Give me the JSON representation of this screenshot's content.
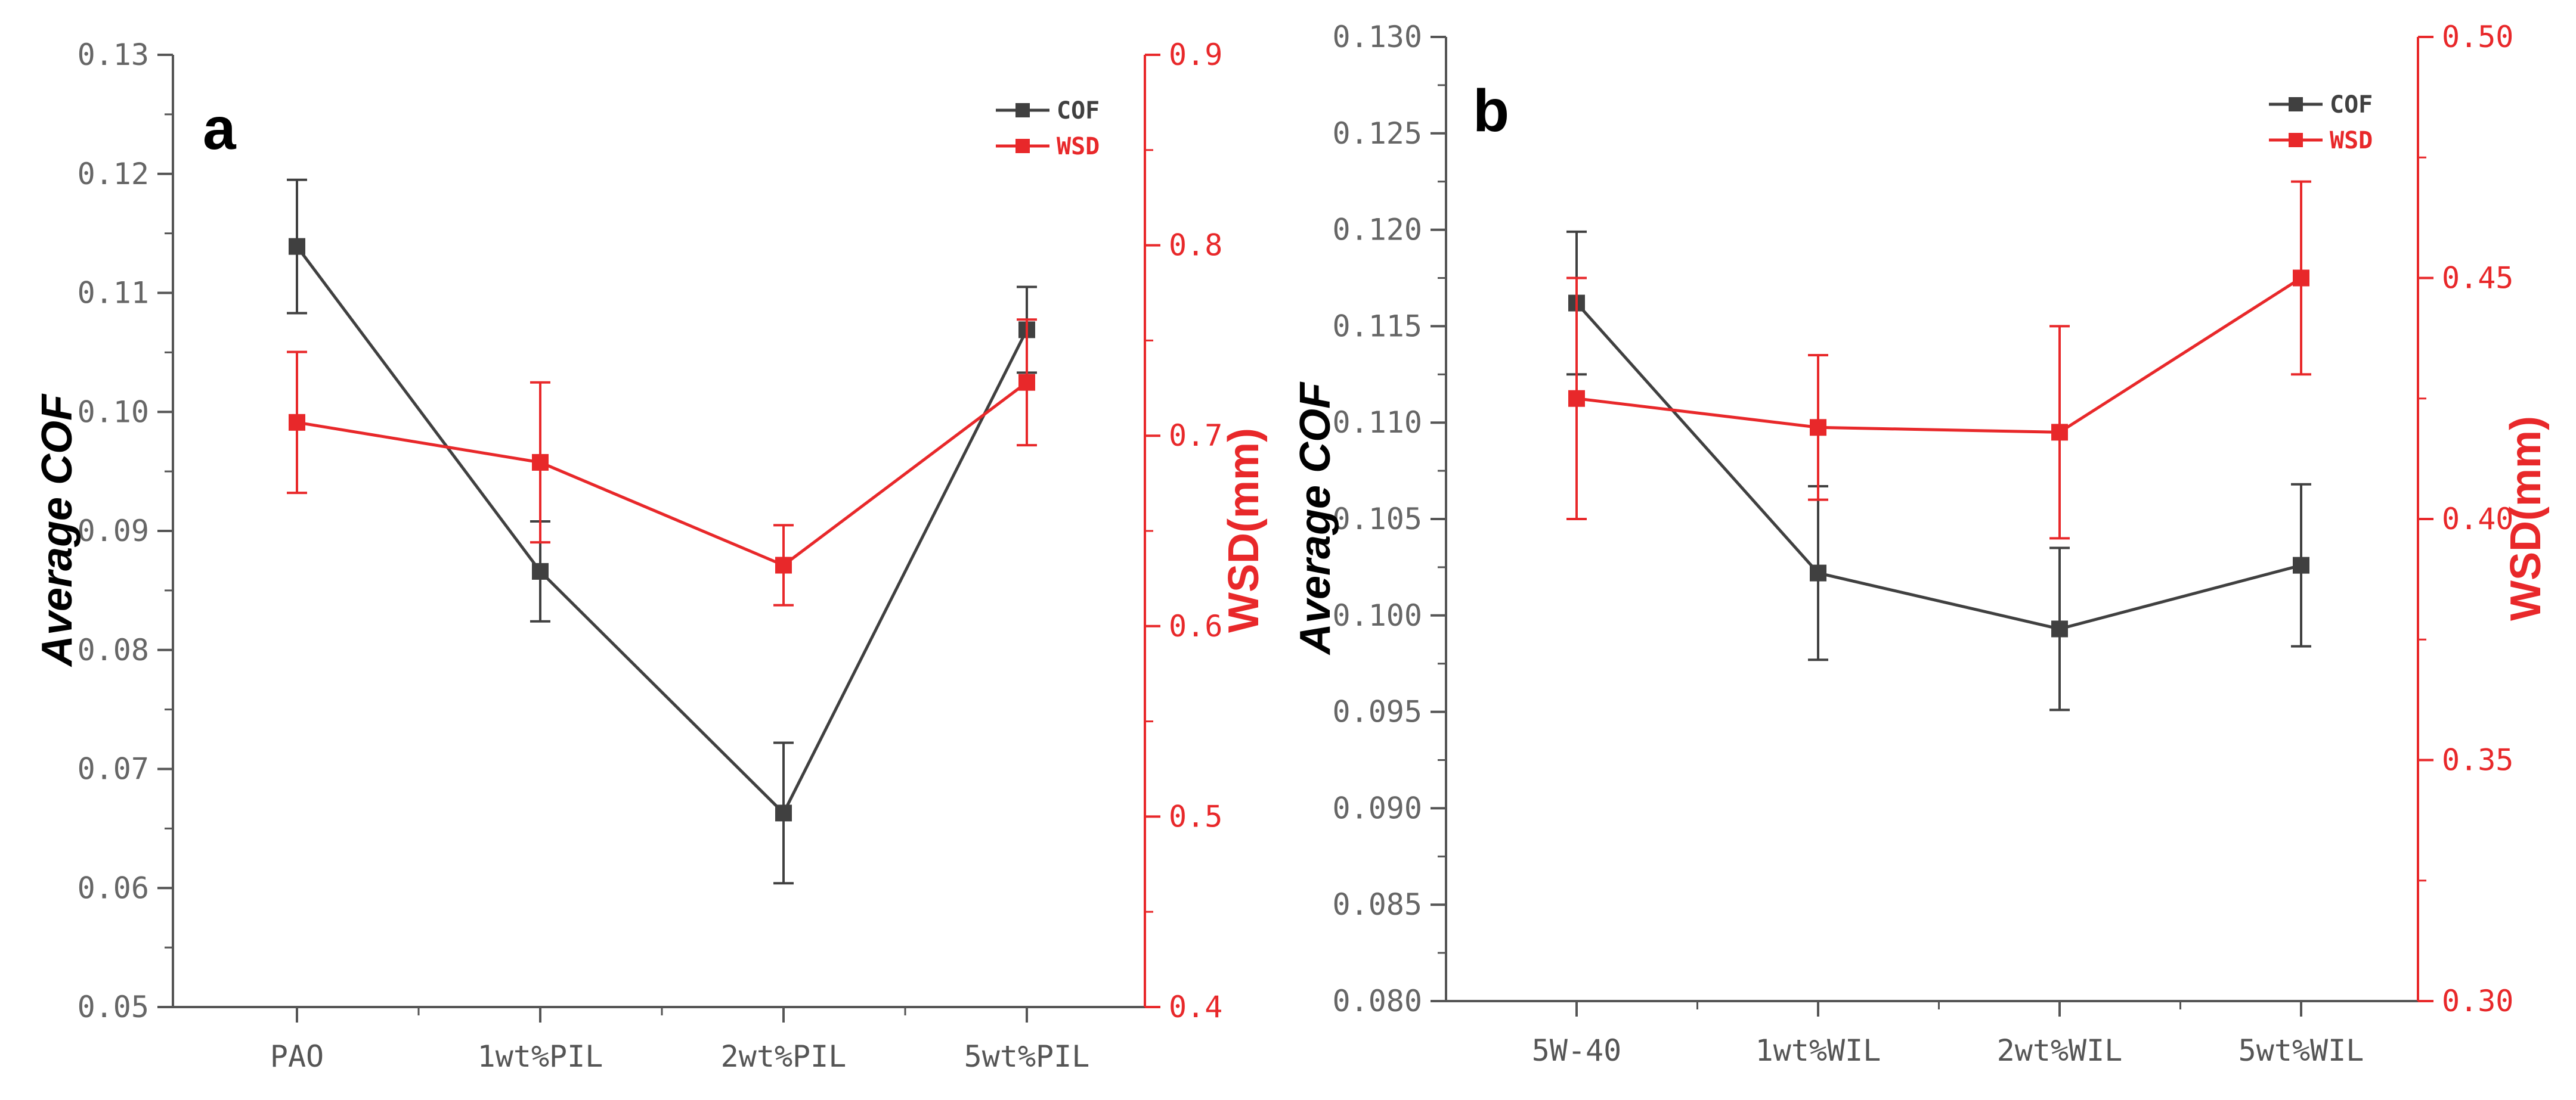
{
  "colors": {
    "cof": "#404040",
    "wsd": "#e8282a",
    "axis": "#555555"
  },
  "chart_data": [
    {
      "type": "line",
      "panel_label": "a",
      "categories": [
        "PAO",
        "1wt%PIL",
        "2wt%PIL",
        "5wt%PIL"
      ],
      "ylabel_left": "Average COF",
      "ylabel_right": "WSD(mm)",
      "ylim_left": [
        0.05,
        0.13
      ],
      "ylim_right": [
        0.4,
        0.9
      ],
      "yticks_left": [
        "0.05",
        "0.06",
        "0.07",
        "0.08",
        "0.09",
        "0.10",
        "0.11",
        "0.12",
        "0.13"
      ],
      "yticks_right": [
        "0.4",
        "0.5",
        "0.6",
        "0.7",
        "0.8",
        "0.9"
      ],
      "legend_position": "top-right",
      "series": [
        {
          "name": "COF",
          "axis": "left",
          "values": [
            0.1139,
            0.0866,
            0.0663,
            0.1069
          ],
          "errors": [
            0.0056,
            0.0042,
            0.0059,
            0.0036
          ]
        },
        {
          "name": "WSD",
          "axis": "right",
          "values": [
            0.707,
            0.686,
            0.632,
            0.728
          ],
          "errors": [
            0.037,
            0.042,
            0.021,
            0.033
          ]
        }
      ]
    },
    {
      "type": "line",
      "panel_label": "b",
      "categories": [
        "5W-40",
        "1wt%WIL",
        "2wt%WIL",
        "5wt%WIL"
      ],
      "ylabel_left": "Average COF",
      "ylabel_right": "WSD(mm)",
      "ylim_left": [
        0.08,
        0.13
      ],
      "ylim_right": [
        0.3,
        0.5
      ],
      "yticks_left": [
        "0.080",
        "0.085",
        "0.090",
        "0.095",
        "0.100",
        "0.105",
        "0.110",
        "0.115",
        "0.120",
        "0.125",
        "0.130"
      ],
      "yticks_right": [
        "0.30",
        "0.35",
        "0.40",
        "0.45",
        "0.50"
      ],
      "legend_position": "top-right",
      "series": [
        {
          "name": "COF",
          "axis": "left",
          "values": [
            0.1162,
            0.1022,
            0.0993,
            0.1026
          ],
          "errors": [
            0.0037,
            0.0045,
            0.0042,
            0.0042
          ]
        },
        {
          "name": "WSD",
          "axis": "right",
          "values": [
            0.425,
            0.419,
            0.418,
            0.45
          ],
          "errors": [
            0.025,
            0.015,
            0.022,
            0.02
          ]
        }
      ]
    }
  ]
}
